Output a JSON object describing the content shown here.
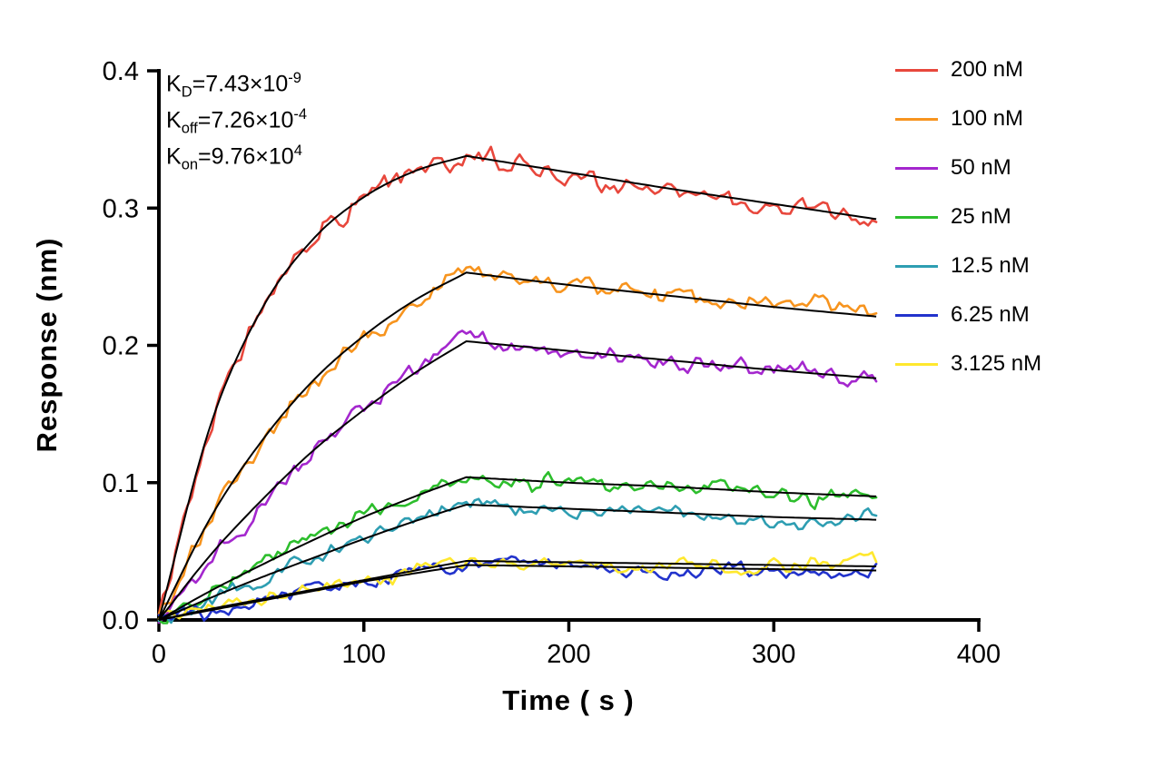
{
  "figure": {
    "background": "#FFFFFF",
    "fit_line_color": "#000000"
  },
  "chart_data": {
    "type": "line",
    "title": "",
    "xlabel": "Time ( s )",
    "ylabel": "Response (nm)",
    "xlim": [
      0,
      400
    ],
    "ylim": [
      0,
      0.4
    ],
    "x_ticks": [
      0,
      100,
      200,
      300,
      400
    ],
    "x_tick_labels": [
      "0",
      "100",
      "200",
      "300",
      "400"
    ],
    "y_ticks": [
      0.0,
      0.1,
      0.2,
      0.3,
      0.4
    ],
    "y_tick_labels": [
      "0.0",
      "0.1",
      "0.2",
      "0.3",
      "0.4"
    ],
    "grid": false,
    "legend_position": "top-right",
    "association_end_s": 150,
    "fit_t": [
      0,
      25,
      50,
      75,
      100,
      125,
      150,
      200,
      250,
      300,
      350
    ],
    "series": [
      {
        "name": "200 nM",
        "color": "#E8473C",
        "noise": 0.008,
        "fit_r": [
          0,
          0.141,
          0.226,
          0.277,
          0.308,
          0.327,
          0.338,
          0.326,
          0.314,
          0.303,
          0.292
        ]
      },
      {
        "name": "100 nM",
        "color": "#F7941E",
        "noise": 0.007,
        "fit_r": [
          0,
          0.074,
          0.13,
          0.174,
          0.207,
          0.233,
          0.253,
          0.244,
          0.236,
          0.228,
          0.221
        ]
      },
      {
        "name": "50 nM",
        "color": "#A427CE",
        "noise": 0.007,
        "fit_r": [
          0,
          0.047,
          0.087,
          0.123,
          0.153,
          0.18,
          0.203,
          0.196,
          0.189,
          0.182,
          0.176
        ]
      },
      {
        "name": "25 nM",
        "color": "#2DBE2D",
        "noise": 0.0065,
        "fit_r": [
          0,
          0.021,
          0.04,
          0.058,
          0.075,
          0.09,
          0.104,
          0.1,
          0.097,
          0.093,
          0.09
        ]
      },
      {
        "name": "12.5 nM",
        "color": "#2E9EB2",
        "noise": 0.006,
        "fit_r": [
          0,
          0.016,
          0.031,
          0.045,
          0.059,
          0.072,
          0.084,
          0.081,
          0.078,
          0.075,
          0.073
        ]
      },
      {
        "name": "6.25 nM",
        "color": "#2233CC",
        "noise": 0.0055,
        "fit_r": [
          0,
          0.007,
          0.014,
          0.021,
          0.028,
          0.034,
          0.04,
          0.039,
          0.038,
          0.037,
          0.036
        ]
      },
      {
        "name": "3.125 nM",
        "color": "#FFE82E",
        "noise": 0.0055,
        "fit_r": [
          0,
          0.008,
          0.015,
          0.022,
          0.029,
          0.036,
          0.043,
          0.042,
          0.041,
          0.04,
          0.039
        ]
      }
    ],
    "annotations": [
      {
        "base": "K",
        "sub": "D",
        "text": "=7.43×10",
        "sup": "-9"
      },
      {
        "base": "K",
        "sub": "off",
        "text": "=7.26×10",
        "sup": "-4"
      },
      {
        "base": "K",
        "sub": "on",
        "text": "=9.76×10",
        "sup": "4"
      }
    ]
  }
}
